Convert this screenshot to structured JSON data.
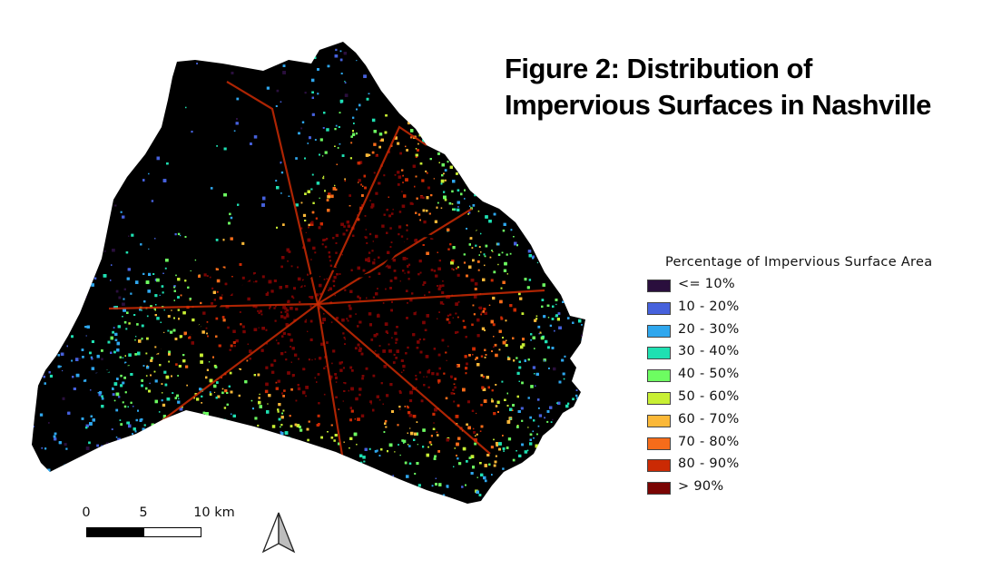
{
  "title": {
    "line1": "Figure 2: Distribution of",
    "line2": "Impervious Surfaces in Nashville"
  },
  "legend": {
    "title": "Percentage of Impervious Surface Area",
    "items": [
      {
        "label": "<= 10%",
        "color": "#2a0f3d"
      },
      {
        "label": "10 - 20%",
        "color": "#4661dc"
      },
      {
        "label": "20 - 30%",
        "color": "#2fa7ee"
      },
      {
        "label": "30 - 40%",
        "color": "#1fe0b2"
      },
      {
        "label": "40 - 50%",
        "color": "#6dfd61"
      },
      {
        "label": "50 - 60%",
        "color": "#c8ef34"
      },
      {
        "label": "60 - 70%",
        "color": "#fbb838"
      },
      {
        "label": "70 - 80%",
        "color": "#f66c1a"
      },
      {
        "label": "80 - 90%",
        "color": "#cb2a04"
      },
      {
        "label": "> 90%",
        "color": "#7a0403"
      }
    ]
  },
  "scale_bar": {
    "labels": [
      "0",
      "5",
      "10 km"
    ]
  },
  "north_arrow": {
    "icon": "north-arrow-icon"
  },
  "map": {
    "background_color": "#000000",
    "core_color": "#cb2a04"
  }
}
